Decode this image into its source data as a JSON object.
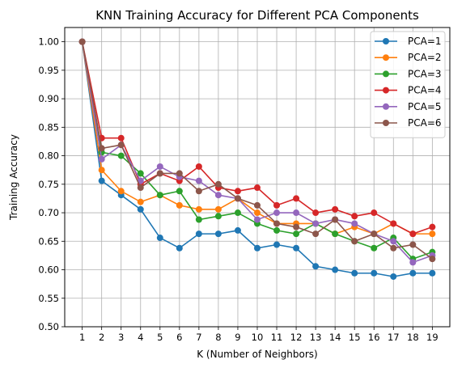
{
  "chart_data": {
    "type": "line",
    "title": "KNN Training Accuracy for Different PCA Components",
    "xlabel": "K (Number of Neighbors)",
    "ylabel": "Training Accuracy",
    "x": [
      1,
      2,
      3,
      4,
      5,
      6,
      7,
      8,
      9,
      10,
      11,
      12,
      13,
      14,
      15,
      16,
      17,
      18,
      19
    ],
    "xlim": [
      0.1,
      19.9
    ],
    "ylim": [
      0.5,
      1.025
    ],
    "yticks": [
      0.5,
      0.55,
      0.6,
      0.65,
      0.7,
      0.75,
      0.8,
      0.85,
      0.9,
      0.95,
      1.0
    ],
    "yticklabels": [
      "0.50",
      "0.55",
      "0.60",
      "0.65",
      "0.70",
      "0.75",
      "0.80",
      "0.85",
      "0.90",
      "0.95",
      "1.00"
    ],
    "grid": true,
    "legend_position": "top-right",
    "series": [
      {
        "name": "PCA=1",
        "color": "#1f77b4",
        "values": [
          1.0,
          0.756,
          0.731,
          0.706,
          0.656,
          0.638,
          0.663,
          0.663,
          0.669,
          0.638,
          0.644,
          0.638,
          0.606,
          0.6,
          0.594,
          0.594,
          0.588,
          0.594,
          0.594
        ]
      },
      {
        "name": "PCA=2",
        "color": "#ff7f0e",
        "values": [
          1.0,
          0.775,
          0.738,
          0.719,
          0.731,
          0.713,
          0.706,
          0.706,
          0.725,
          0.7,
          0.681,
          0.681,
          0.681,
          0.663,
          0.675,
          0.663,
          0.681,
          0.663,
          0.663
        ]
      },
      {
        "name": "PCA=3",
        "color": "#2ca02c",
        "values": [
          1.0,
          0.806,
          0.8,
          0.769,
          0.731,
          0.738,
          0.688,
          0.694,
          0.7,
          0.681,
          0.669,
          0.663,
          0.681,
          0.663,
          0.65,
          0.638,
          0.656,
          0.619,
          0.631
        ]
      },
      {
        "name": "PCA=4",
        "color": "#d62728",
        "values": [
          1.0,
          0.831,
          0.831,
          0.75,
          0.769,
          0.756,
          0.781,
          0.744,
          0.738,
          0.744,
          0.713,
          0.725,
          0.7,
          0.706,
          0.694,
          0.7,
          0.681,
          0.663,
          0.675
        ]
      },
      {
        "name": "PCA=5",
        "color": "#9467bd",
        "values": [
          1.0,
          0.794,
          0.819,
          0.756,
          0.781,
          0.763,
          0.756,
          0.731,
          0.725,
          0.688,
          0.7,
          0.7,
          0.681,
          0.688,
          0.681,
          0.663,
          0.65,
          0.613,
          0.625
        ]
      },
      {
        "name": "PCA=6",
        "color": "#8c564b",
        "values": [
          1.0,
          0.813,
          0.819,
          0.744,
          0.769,
          0.769,
          0.738,
          0.75,
          0.725,
          0.713,
          0.681,
          0.675,
          0.663,
          0.688,
          0.65,
          0.663,
          0.638,
          0.644,
          0.619
        ]
      }
    ]
  }
}
